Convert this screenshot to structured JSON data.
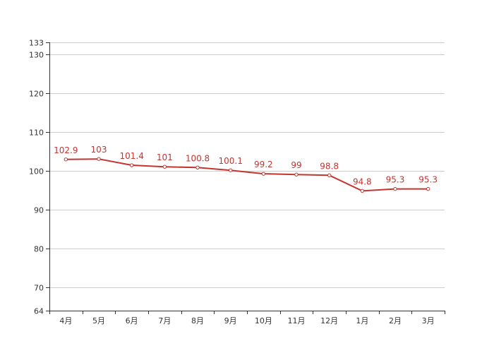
{
  "chart_data": {
    "type": "line",
    "title": "",
    "xlabel": "",
    "ylabel": "",
    "categories": [
      "4月",
      "5月",
      "6月",
      "7月",
      "8月",
      "9月",
      "10月",
      "11月",
      "12月",
      "1月",
      "2月",
      "3月"
    ],
    "values": [
      102.9,
      103,
      101.4,
      101,
      100.8,
      100.1,
      99.2,
      99,
      98.8,
      94.8,
      95.3,
      95.3
    ],
    "data_labels": [
      "102.9",
      "103",
      "101.4",
      "101",
      "100.8",
      "100.1",
      "99.2",
      "99",
      "98.8",
      "94.8",
      "95.3",
      "95.3"
    ],
    "ylim": [
      64,
      133
    ],
    "y_ticks": [
      64,
      70,
      80,
      90,
      100,
      110,
      120,
      130,
      133
    ],
    "y_tick_labels": [
      "64",
      "70",
      "80",
      "90",
      "100",
      "110",
      "120",
      "130",
      "133"
    ],
    "grid": true,
    "legend": "none",
    "colors": {
      "line": "#c23531",
      "grid": "#cccccc",
      "axis": "#333333",
      "marker_fill": "#ffffff"
    }
  }
}
